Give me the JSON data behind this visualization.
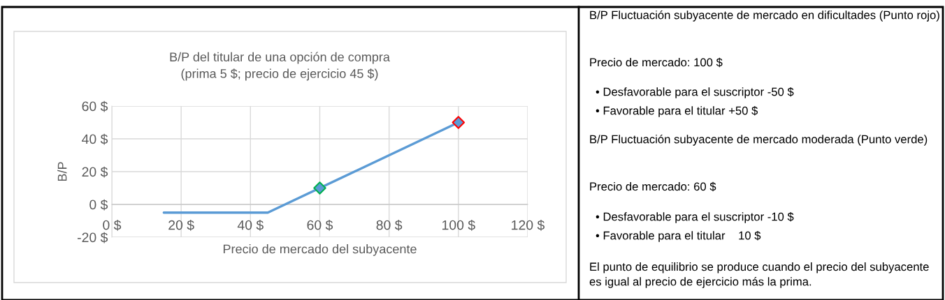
{
  "chart_data": [
    {
      "type": "line",
      "title": "B/P del titular de una opción de compra\n(prima 5 $; precio de ejercicio 45 $)",
      "xlabel": "Precio de mercado del subyacente",
      "ylabel": "B/P",
      "xlim": [
        0,
        120
      ],
      "ylim": [
        -20,
        60
      ],
      "xticks": [
        {
          "value": 0,
          "label": "0 $"
        },
        {
          "value": 20,
          "label": "20 $"
        },
        {
          "value": 40,
          "label": "40 $"
        },
        {
          "value": 60,
          "label": "60 $"
        },
        {
          "value": 80,
          "label": "80 $"
        },
        {
          "value": 100,
          "label": "100 $"
        },
        {
          "value": 120,
          "label": "120 $"
        }
      ],
      "yticks": [
        {
          "value": -20,
          "label": "-20 $"
        },
        {
          "value": 0,
          "label": "0 $"
        },
        {
          "value": 20,
          "label": "20 $"
        },
        {
          "value": 40,
          "label": "40 $"
        },
        {
          "value": 60,
          "label": "60 $"
        }
      ],
      "grid": true,
      "line_style": "solid",
      "series": [
        {
          "type": "line",
          "color": "#5b9bd5",
          "x": [
            15,
            45,
            100
          ],
          "values": [
            -5,
            -5,
            50
          ],
          "marker": "none"
        },
        {
          "type": "scatter",
          "color": "#5b9bd5",
          "colors": [
            "#00b050",
            "#ff0000"
          ],
          "x": [
            60,
            100
          ],
          "values": [
            10,
            50
          ],
          "marker": "diamond"
        }
      ]
    },
    {
      "type": "other",
      "annotations": [
        "B/P Fluctuación subyacente de mercado en dificultades (Punto rojo)",
        "Precio de mercado: 100 $",
        "• Desfavorable para el suscriptor -50 $",
        "• Favorable para el titular +50 $",
        "B/P Fluctuación subyacente de mercado moderada (Punto verde)",
        "Precio de mercado: 60 $",
        "• Desfavorable para el suscriptor -10 $",
        "• Favorable para el titular    10 $",
        "El punto de equilibrio se produce cuando el precio del subyacente es igual al precio de ejercicio más la prima."
      ]
    }
  ]
}
